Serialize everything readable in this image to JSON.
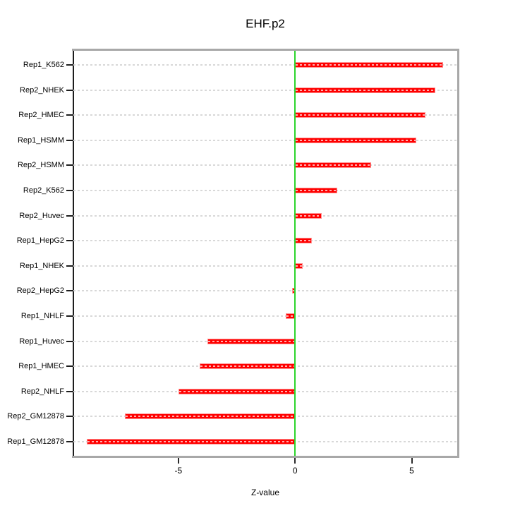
{
  "title": "EHF.p2",
  "x_axis": {
    "label": "Z-value",
    "tick_labels": [
      "-5",
      "0",
      "5"
    ]
  },
  "chart_data": {
    "type": "bar",
    "orientation": "horizontal",
    "title": "EHF.p2",
    "xlabel": "Z-value",
    "ylabel": "",
    "categories": [
      "Rep1_K562",
      "Rep2_NHEK",
      "Rep2_HMEC",
      "Rep1_HSMM",
      "Rep2_HSMM",
      "Rep2_K562",
      "Rep2_Huvec",
      "Rep1_HepG2",
      "Rep1_NHEK",
      "Rep2_HepG2",
      "Rep1_NHLF",
      "Rep1_Huvec",
      "Rep1_HMEC",
      "Rep2_NHLF",
      "Rep2_GM12878",
      "Rep1_GM12878"
    ],
    "values": [
      6.35,
      6.0,
      5.6,
      5.2,
      3.25,
      1.8,
      1.15,
      0.72,
      0.33,
      -0.12,
      -0.39,
      -3.74,
      -4.09,
      -4.98,
      -7.3,
      -8.93
    ],
    "xlim": [
      -9.5,
      6.95
    ],
    "xticks": [
      -5,
      0,
      5
    ],
    "grid": "horizontal-dashed-per-category",
    "legend": null,
    "zero_line_x": 0,
    "colors": {
      "bar": "#ff0000",
      "bar_edge": "#ff9393",
      "bar_dash": "#ffb0b0",
      "zero_line": "#2bd52b",
      "gridline": "#d8d8d8",
      "box_border": "#a8a8a8",
      "axis": "#1d1d1d",
      "text": "#000000"
    }
  }
}
